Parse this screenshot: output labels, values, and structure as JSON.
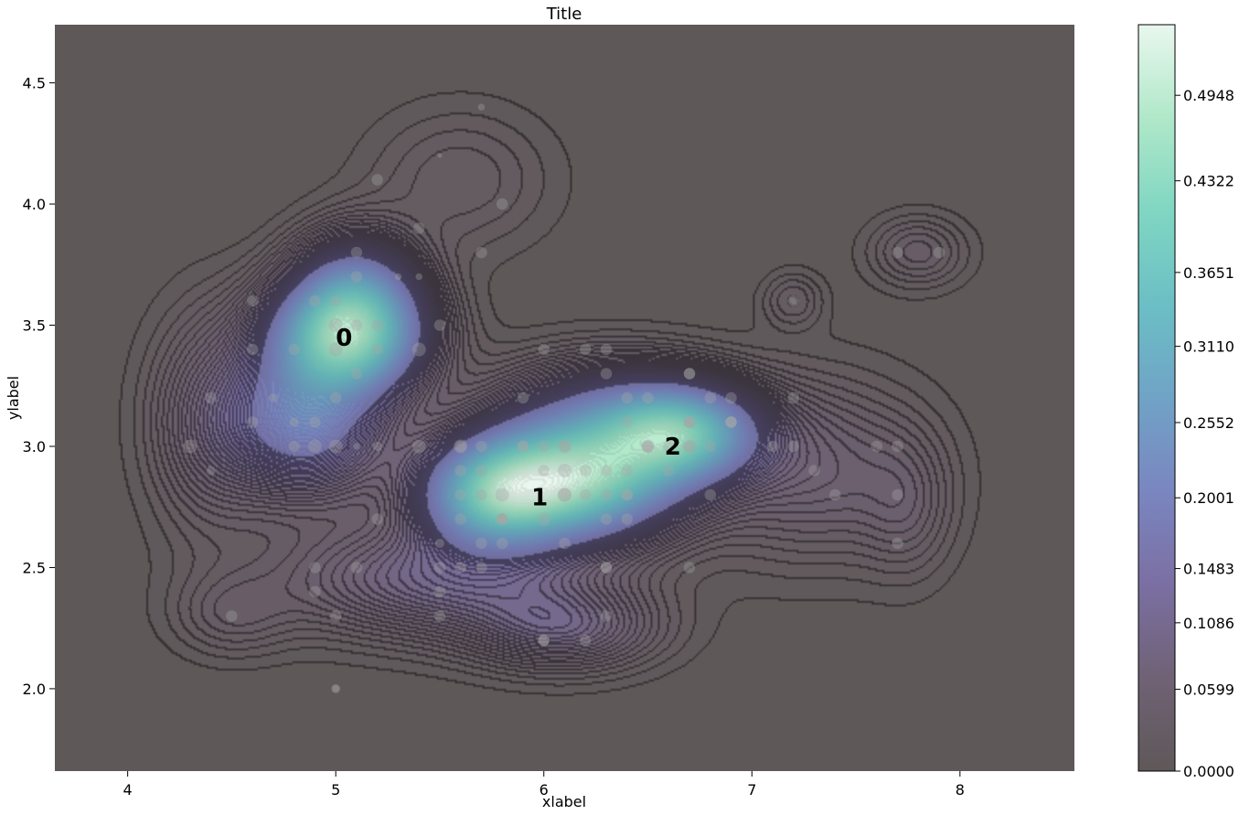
{
  "chart_data": {
    "type": "heatmap",
    "title": "Title",
    "xlabel": "xlabel",
    "ylabel": "ylabel",
    "xlim": [
      3.65,
      8.55
    ],
    "ylim": [
      1.66,
      4.74
    ],
    "x_ticks": [
      4,
      5,
      6,
      7,
      8
    ],
    "y_ticks": [
      2.0,
      2.5,
      3.0,
      3.5,
      4.0,
      4.5
    ],
    "x_tick_labels": [
      "4",
      "5",
      "6",
      "7",
      "8"
    ],
    "y_tick_labels": [
      "2.0",
      "2.5",
      "3.0",
      "3.5",
      "4.0",
      "4.5"
    ],
    "grid": false,
    "background_color": "#5f5858",
    "colormap": [
      "#5f5858",
      "#6f6275",
      "#7b6fa3",
      "#7a86c0",
      "#70a3c6",
      "#6bbfc5",
      "#80d6c2",
      "#b0e8c9",
      "#e9f7ee"
    ],
    "colorbar": {
      "min": 0.0,
      "max": 0.5465,
      "ticks": [
        0.0,
        0.0599,
        0.1086,
        0.1483,
        0.2001,
        0.2552,
        0.311,
        0.3651,
        0.4322,
        0.4948
      ],
      "tick_labels": [
        "0.0000",
        "0.0599",
        "0.1086",
        "0.1483",
        "0.2001",
        "0.2552",
        "0.3110",
        "0.3651",
        "0.4322",
        "0.4948"
      ]
    },
    "density_peaks": [
      {
        "x": 5.05,
        "y": 3.45,
        "sx": 0.24,
        "sy": 0.16,
        "w": 0.4
      },
      {
        "x": 4.85,
        "y": 3.1,
        "sx": 0.25,
        "sy": 0.2,
        "w": 0.2
      },
      {
        "x": 5.1,
        "y": 3.65,
        "sx": 0.2,
        "sy": 0.16,
        "w": 0.16
      },
      {
        "x": 6.1,
        "y": 2.86,
        "sx": 0.35,
        "sy": 0.16,
        "w": 0.46
      },
      {
        "x": 5.75,
        "y": 2.78,
        "sx": 0.22,
        "sy": 0.14,
        "w": 0.22
      },
      {
        "x": 6.65,
        "y": 3.05,
        "sx": 0.25,
        "sy": 0.13,
        "w": 0.34
      },
      {
        "x": 6.3,
        "y": 3.15,
        "sx": 0.35,
        "sy": 0.15,
        "w": 0.12
      },
      {
        "x": 5.5,
        "y": 2.45,
        "sx": 0.5,
        "sy": 0.16,
        "w": 0.1
      },
      {
        "x": 6.1,
        "y": 2.25,
        "sx": 0.3,
        "sy": 0.12,
        "w": 0.08
      },
      {
        "x": 7.3,
        "y": 2.9,
        "sx": 0.35,
        "sy": 0.25,
        "w": 0.06
      },
      {
        "x": 7.75,
        "y": 2.75,
        "sx": 0.15,
        "sy": 0.2,
        "w": 0.03
      },
      {
        "x": 4.5,
        "y": 2.3,
        "sx": 0.2,
        "sy": 0.12,
        "w": 0.03
      },
      {
        "x": 7.8,
        "y": 3.8,
        "sx": 0.16,
        "sy": 0.1,
        "w": 0.04
      },
      {
        "x": 7.2,
        "y": 3.6,
        "sx": 0.1,
        "sy": 0.08,
        "w": 0.03
      },
      {
        "x": 5.6,
        "y": 4.1,
        "sx": 0.3,
        "sy": 0.2,
        "w": 0.03
      },
      {
        "x": 4.4,
        "y": 3.1,
        "sx": 0.2,
        "sy": 0.3,
        "w": 0.06
      }
    ],
    "points": [
      [
        5.0,
        3.5,
        6
      ],
      [
        5.0,
        3.4,
        6
      ],
      [
        5.1,
        3.5,
        5
      ],
      [
        5.0,
        3.6,
        5
      ],
      [
        4.9,
        3.6,
        5
      ],
      [
        5.2,
        3.4,
        5
      ],
      [
        4.9,
        3.1,
        5
      ],
      [
        4.8,
        3.0,
        5
      ],
      [
        4.9,
        3.0,
        6
      ],
      [
        4.8,
        3.1,
        4
      ],
      [
        4.7,
        3.2,
        4
      ],
      [
        4.6,
        3.1,
        5
      ],
      [
        4.6,
        3.4,
        5
      ],
      [
        5.0,
        3.0,
        6
      ],
      [
        4.4,
        2.9,
        4
      ],
      [
        4.3,
        3.0,
        6
      ],
      [
        4.4,
        3.2,
        5
      ],
      [
        5.4,
        3.9,
        5
      ],
      [
        5.7,
        4.4,
        3
      ],
      [
        5.2,
        4.1,
        5
      ],
      [
        5.5,
        4.2,
        2
      ],
      [
        5.8,
        4.0,
        5
      ],
      [
        5.1,
        3.8,
        5
      ],
      [
        5.4,
        3.4,
        6
      ],
      [
        5.2,
        3.5,
        5
      ],
      [
        5.1,
        3.3,
        5
      ],
      [
        4.8,
        3.4,
        5
      ],
      [
        5.4,
        3.7,
        3
      ],
      [
        5.1,
        3.7,
        5
      ],
      [
        4.6,
        3.6,
        5
      ],
      [
        5.1,
        3.0,
        3
      ],
      [
        5.0,
        3.2,
        5
      ],
      [
        5.2,
        3.0,
        4
      ],
      [
        5.3,
        3.7,
        3
      ],
      [
        5.5,
        3.5,
        5
      ],
      [
        5.7,
        3.8,
        5
      ],
      [
        5.0,
        2.0,
        4
      ],
      [
        5.9,
        3.0,
        5
      ],
      [
        6.0,
        2.2,
        5
      ],
      [
        6.1,
        2.9,
        6
      ],
      [
        5.6,
        2.9,
        5
      ],
      [
        6.7,
        3.1,
        5
      ],
      [
        5.6,
        3.0,
        6
      ],
      [
        5.8,
        2.7,
        5
      ],
      [
        6.2,
        2.2,
        5
      ],
      [
        5.6,
        2.5,
        5
      ],
      [
        5.9,
        3.2,
        5
      ],
      [
        6.1,
        2.8,
        6
      ],
      [
        6.3,
        2.5,
        5
      ],
      [
        6.1,
        2.8,
        6
      ],
      [
        6.4,
        2.9,
        5
      ],
      [
        6.6,
        3.0,
        5
      ],
      [
        6.8,
        2.8,
        5
      ],
      [
        6.7,
        3.0,
        6
      ],
      [
        6.0,
        2.9,
        5
      ],
      [
        5.7,
        2.6,
        5
      ],
      [
        5.5,
        2.4,
        5
      ],
      [
        5.8,
        2.7,
        5
      ],
      [
        6.0,
        2.7,
        6
      ],
      [
        5.4,
        3.0,
        6
      ],
      [
        6.0,
        3.4,
        5
      ],
      [
        6.7,
        3.1,
        5
      ],
      [
        6.3,
        2.3,
        5
      ],
      [
        5.6,
        3.0,
        5
      ],
      [
        5.5,
        2.5,
        5
      ],
      [
        5.5,
        2.6,
        4
      ],
      [
        6.1,
        3.0,
        6
      ],
      [
        5.8,
        2.6,
        5
      ],
      [
        5.0,
        2.3,
        5
      ],
      [
        5.6,
        2.7,
        5
      ],
      [
        5.7,
        3.0,
        5
      ],
      [
        5.7,
        2.9,
        5
      ],
      [
        6.2,
        2.9,
        5
      ],
      [
        5.1,
        2.5,
        5
      ],
      [
        5.7,
        2.8,
        5
      ],
      [
        6.3,
        3.3,
        5
      ],
      [
        5.8,
        2.7,
        5
      ],
      [
        7.1,
        3.0,
        5
      ],
      [
        6.3,
        2.9,
        5
      ],
      [
        6.5,
        3.0,
        6
      ],
      [
        7.6,
        3.0,
        5
      ],
      [
        4.9,
        2.5,
        5
      ],
      [
        7.3,
        2.9,
        5
      ],
      [
        6.7,
        2.5,
        5
      ],
      [
        7.2,
        3.6,
        5
      ],
      [
        6.5,
        3.2,
        5
      ],
      [
        6.4,
        2.7,
        5
      ],
      [
        6.8,
        3.0,
        5
      ],
      [
        5.7,
        2.5,
        5
      ],
      [
        5.8,
        2.8,
        6
      ],
      [
        6.4,
        3.2,
        5
      ],
      [
        6.5,
        3.0,
        5
      ],
      [
        7.7,
        3.8,
        5
      ],
      [
        7.7,
        2.6,
        5
      ],
      [
        6.0,
        2.2,
        5
      ],
      [
        6.9,
        3.2,
        5
      ],
      [
        5.6,
        2.8,
        5
      ],
      [
        7.7,
        2.8,
        5
      ],
      [
        6.3,
        2.7,
        5
      ],
      [
        6.7,
        3.3,
        5
      ],
      [
        7.2,
        3.2,
        5
      ],
      [
        6.2,
        2.8,
        5
      ],
      [
        6.1,
        3.0,
        5
      ],
      [
        6.4,
        2.8,
        5
      ],
      [
        7.2,
        3.0,
        5
      ],
      [
        7.4,
        2.8,
        5
      ],
      [
        7.9,
        3.8,
        5
      ],
      [
        6.4,
        2.8,
        5
      ],
      [
        6.3,
        2.8,
        5
      ],
      [
        6.1,
        2.6,
        5
      ],
      [
        7.7,
        3.0,
        5
      ],
      [
        6.3,
        3.4,
        5
      ],
      [
        6.4,
        3.1,
        5
      ],
      [
        6.0,
        3.0,
        5
      ],
      [
        6.9,
        3.1,
        5
      ],
      [
        6.7,
        3.1,
        5
      ],
      [
        6.9,
        3.1,
        5
      ],
      [
        5.8,
        2.7,
        5
      ],
      [
        6.8,
        3.2,
        5
      ],
      [
        6.7,
        3.3,
        5
      ],
      [
        6.7,
        3.0,
        5
      ],
      [
        6.3,
        2.5,
        5
      ],
      [
        6.5,
        3.0,
        5
      ],
      [
        6.2,
        3.4,
        5
      ],
      [
        5.9,
        3.0,
        5
      ],
      [
        4.5,
        2.3,
        5
      ],
      [
        5.2,
        2.7,
        5
      ],
      [
        4.9,
        2.4,
        5
      ],
      [
        5.5,
        2.3,
        5
      ],
      [
        6.6,
        2.9,
        5
      ],
      [
        5.0,
        2.0,
        3
      ],
      [
        6.9,
        3.1,
        5
      ]
    ],
    "cluster_labels": [
      {
        "text": "0",
        "x": 5.04,
        "y": 3.45
      },
      {
        "text": "1",
        "x": 5.98,
        "y": 2.79
      },
      {
        "text": "2",
        "x": 6.62,
        "y": 3.0
      }
    ]
  }
}
